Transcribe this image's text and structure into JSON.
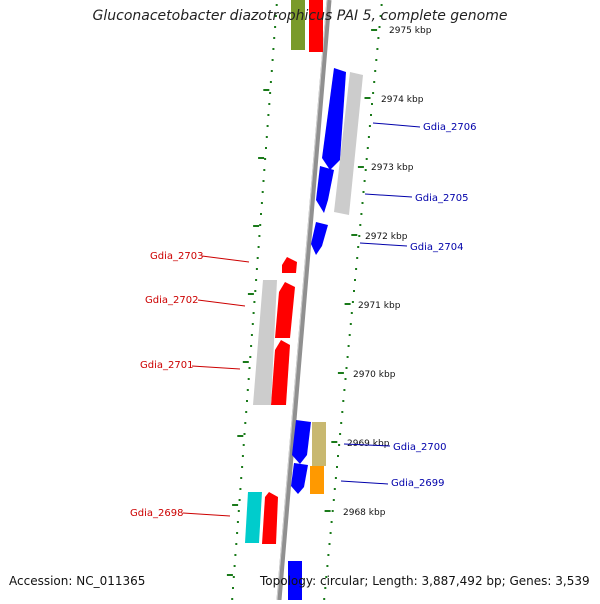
{
  "title": "Gluconacetobacter diazotrophicus PAI 5, complete genome",
  "footer": {
    "accession": "Accession: NC_011365",
    "summary": "Topology: circular; Length: 3,887,492 bp; Genes: 3,539"
  },
  "ticks": [
    "2975 kbp",
    "2974 kbp",
    "2973 kbp",
    "2972 kbp",
    "2971 kbp",
    "2970 kbp",
    "2969 kbp",
    "2968 kbp"
  ],
  "genes": [
    {
      "id": "Gdia_2706",
      "strand": "minus",
      "color": "#0000ff"
    },
    {
      "id": "Gdia_2705",
      "strand": "minus",
      "color": "#0000ff"
    },
    {
      "id": "Gdia_2704",
      "strand": "minus",
      "color": "#0000ff"
    },
    {
      "id": "Gdia_2703",
      "strand": "plus",
      "color": "#ff0000"
    },
    {
      "id": "Gdia_2702",
      "strand": "plus",
      "color": "#ff0000"
    },
    {
      "id": "Gdia_2701",
      "strand": "plus",
      "color": "#ff0000"
    },
    {
      "id": "Gdia_2700",
      "strand": "minus",
      "color": "#0000ff"
    },
    {
      "id": "Gdia_2699",
      "strand": "minus",
      "color": "#0000ff"
    },
    {
      "id": "Gdia_2698",
      "strand": "plus",
      "color": "#ff0000"
    }
  ],
  "colors": {
    "backbone": "#808080",
    "tick_dots": "#1a7a1a",
    "plus_strand": "#ff0000",
    "minus_strand": "#0000ff",
    "pseudo_gray": "#c8c8c8",
    "olive": "#7a9a2a",
    "khaki": "#c8b870",
    "orange": "#ff9900",
    "cyan": "#00cccc"
  }
}
